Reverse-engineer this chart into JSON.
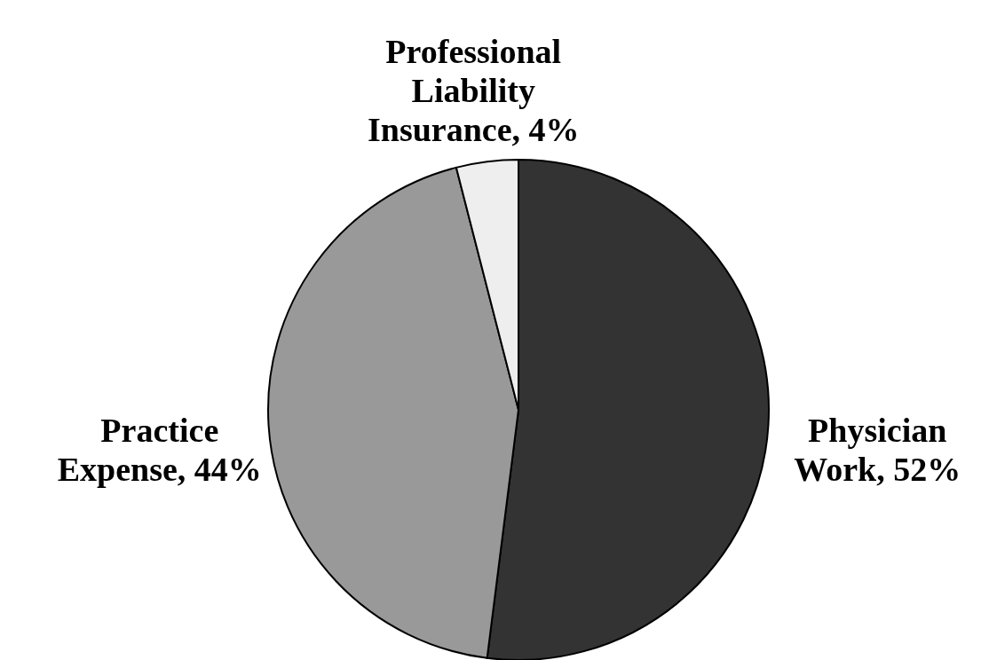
{
  "chart_data": {
    "type": "pie",
    "categories": [
      "Physician Work",
      "Practice Expense",
      "Professional Liability Insurance"
    ],
    "values": [
      52,
      44,
      4
    ],
    "value_labels": [
      "52%",
      "44%",
      "4%"
    ],
    "colors": [
      "#333333",
      "#999999",
      "#eeeeee"
    ]
  }
}
